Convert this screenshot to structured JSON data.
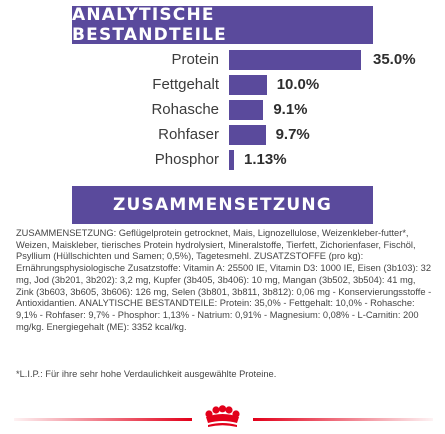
{
  "analytical": {
    "title": "ANALYTISCHE BESTANDTEILE",
    "color": "#5a4a9c",
    "rows": [
      {
        "label": "Protein",
        "value_text": "35.0%",
        "value": 35.0
      },
      {
        "label": "Fettgehalt",
        "value_text": "10.0%",
        "value": 10.0
      },
      {
        "label": "Rohasche",
        "value_text": "9.1%",
        "value": 9.1
      },
      {
        "label": "Rohfaser",
        "value_text": "9.7%",
        "value": 9.7
      },
      {
        "label": "Phosphor",
        "value_text": "1.13%",
        "value": 1.13
      }
    ]
  },
  "composition": {
    "title": "ZUSAMMENSETZUNG",
    "text": "ZUSAMMENSETZUNG: Geflügelprotein getrocknet, Mais, Lignozellulose, Weizenkleber-futter*, Weizen, Maiskleber, tierisches Protein hydrolysiert, Mineralstoffe, Tierfett, Zichorienfaser, Fischöl, Psyllium (Hüllschichten und Samen; 0,5%), Tagetesmehl. ZUSATZSTOFFE (pro kg): Ernährungsphysiologische Zusatzstoffe: Vitamin A: 25500 IE, Vitamin D3: 1000 IE, Eisen (3b103): 32 mg, Jod (3b201, 3b202): 3,2 mg, Kupfer (3b405, 3b406): 10 mg, Mangan (3b502, 3b504): 41 mg, Zink (3b603, 3b605, 3b606): 126 mg, Selen (3b801, 3b811, 3b812): 0,06 mg - Konservierungsstoffe - Antioxidantien. ANALYTISCHE BESTANDTEILE: Protein: 35,0% - Fettgehalt: 10,0% - Rohasche: 9,1% - Rohfaser: 9,7% - Phosphor: 1,13% - Natrium: 0,91% - Magnesium: 0,08% - L-Carnitin: 200 mg/kg. Energiegehalt (ME): 3352 kcal/kg.",
    "footnote": "*L.I.P.: Für ihre sehr hohe Verdaulichkeit ausgewählte Proteine."
  },
  "footer": {
    "logo": "royal-canin-crown-logo",
    "accent_color": "#e2001a"
  }
}
